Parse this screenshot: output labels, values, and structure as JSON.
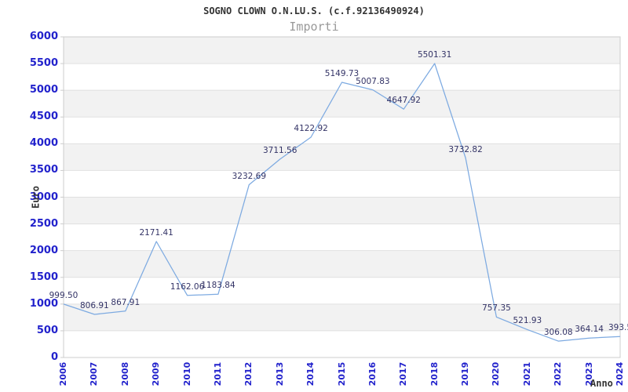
{
  "chart_data": {
    "type": "line",
    "title": "SOGNO CLOWN O.N.LU.S. (c.f.92136490924)",
    "subtitle": "Importi",
    "xlabel": "Anno",
    "ylabel": "Euro",
    "categories": [
      "2006",
      "2007",
      "2008",
      "2009",
      "2010",
      "2011",
      "2012",
      "2013",
      "2014",
      "2015",
      "2016",
      "2017",
      "2018",
      "2019",
      "2020",
      "2021",
      "2022",
      "2023",
      "2024"
    ],
    "values": [
      999.5,
      806.91,
      867.91,
      2171.41,
      1162.06,
      1183.84,
      3232.69,
      3711.56,
      4122.92,
      5149.73,
      5007.83,
      4647.92,
      5501.31,
      3732.82,
      757.35,
      521.93,
      306.08,
      364.14,
      393.5
    ],
    "point_labels": [
      "999.50",
      "806.91",
      "867.91",
      "2171.41",
      "1162.06",
      "1183.84",
      "3232.69",
      "3711.56",
      "4122.92",
      "5149.73",
      "5007.83",
      "4647.92",
      "5501.31",
      "3732.82",
      "757.35",
      "521.93",
      "306.08",
      "364.14",
      "393.5"
    ],
    "ylim": [
      0,
      6000
    ],
    "ytick_step": 500,
    "legend": "none",
    "grid": "alternating-horizontal-bands",
    "colors": {
      "line": "#7daae1",
      "tick_label": "#2222cc",
      "data_label": "#333366",
      "band": "#f2f2f2",
      "gridline": "#e0e0e0",
      "plot_border": "#cccccc",
      "title": "#333333",
      "subtitle": "#999999"
    }
  }
}
